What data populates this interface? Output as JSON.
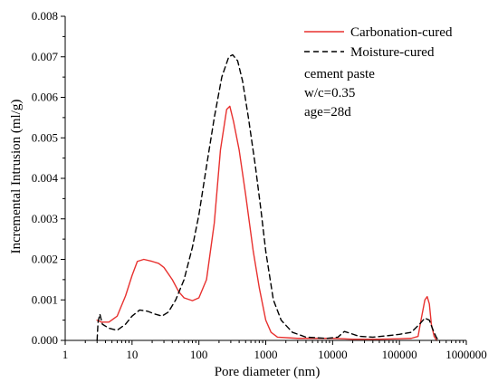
{
  "chart_data": {
    "type": "line",
    "xscale": "log",
    "xlabel": "Pore diameter (nm)",
    "ylabel": "Incremental Intrusion (ml/g)",
    "xlim": [
      1,
      1000000
    ],
    "ylim": [
      0,
      0.008
    ],
    "xticks": [
      1,
      10,
      100,
      1000,
      10000,
      100000,
      1000000
    ],
    "xtick_labels": [
      "1",
      "10",
      "100",
      "1000",
      "10000",
      "100000",
      "1000000"
    ],
    "yticks": [
      0,
      0.001,
      0.002,
      0.003,
      0.004,
      0.005,
      0.006,
      0.007,
      0.008
    ],
    "ytick_labels": [
      "0.000",
      "0.001",
      "0.002",
      "0.003",
      "0.004",
      "0.005",
      "0.006",
      "0.007",
      "0.008"
    ],
    "legend_position": "top-right",
    "annotations": [
      "cement paste",
      "w/c=0.35",
      "age=28d"
    ],
    "series": [
      {
        "name": "Carbonation-cured",
        "color": "#e8312f",
        "style": "solid",
        "points": [
          [
            3.0,
            0.0005
          ],
          [
            3.5,
            0.00045
          ],
          [
            4.5,
            0.00045
          ],
          [
            6,
            0.0006
          ],
          [
            8,
            0.0011
          ],
          [
            10,
            0.0016
          ],
          [
            12,
            0.00195
          ],
          [
            15,
            0.002
          ],
          [
            20,
            0.00195
          ],
          [
            25,
            0.0019
          ],
          [
            30,
            0.0018
          ],
          [
            40,
            0.0015
          ],
          [
            50,
            0.0012
          ],
          [
            60,
            0.00105
          ],
          [
            80,
            0.00098
          ],
          [
            100,
            0.00105
          ],
          [
            130,
            0.0015
          ],
          [
            170,
            0.0029
          ],
          [
            210,
            0.0047
          ],
          [
            260,
            0.0057
          ],
          [
            290,
            0.00578
          ],
          [
            330,
            0.0054
          ],
          [
            400,
            0.0047
          ],
          [
            500,
            0.0036
          ],
          [
            650,
            0.0022
          ],
          [
            800,
            0.0013
          ],
          [
            1000,
            0.0005
          ],
          [
            1200,
            0.0002
          ],
          [
            1500,
            8e-05
          ],
          [
            3000,
            5e-05
          ],
          [
            10000,
            5e-05
          ],
          [
            20000,
            3e-05
          ],
          [
            50000,
            3e-05
          ],
          [
            100000,
            4e-05
          ],
          [
            150000,
            5e-05
          ],
          [
            190000,
            0.0001
          ],
          [
            210000,
            0.0005
          ],
          [
            240000,
            0.001
          ],
          [
            260000,
            0.00108
          ],
          [
            280000,
            0.0009
          ],
          [
            300000,
            0.0004
          ],
          [
            330000,
            0.0001
          ],
          [
            360000,
            0.0
          ]
        ]
      },
      {
        "name": "Moisture-cured",
        "color": "#000000",
        "style": "dashed",
        "points": [
          [
            3.0,
            0.0
          ],
          [
            3.1,
            0.00045
          ],
          [
            3.3,
            0.00065
          ],
          [
            3.6,
            0.0004
          ],
          [
            4.5,
            0.0003
          ],
          [
            6,
            0.00025
          ],
          [
            8,
            0.0004
          ],
          [
            10,
            0.0006
          ],
          [
            13,
            0.00075
          ],
          [
            17,
            0.00072
          ],
          [
            22,
            0.00065
          ],
          [
            28,
            0.0006
          ],
          [
            35,
            0.0007
          ],
          [
            45,
            0.001
          ],
          [
            60,
            0.0015
          ],
          [
            80,
            0.0023
          ],
          [
            100,
            0.0031
          ],
          [
            130,
            0.0043
          ],
          [
            170,
            0.0055
          ],
          [
            220,
            0.0065
          ],
          [
            280,
            0.007
          ],
          [
            320,
            0.00705
          ],
          [
            380,
            0.0069
          ],
          [
            450,
            0.0064
          ],
          [
            550,
            0.0055
          ],
          [
            700,
            0.0043
          ],
          [
            850,
            0.0032
          ],
          [
            1000,
            0.0022
          ],
          [
            1300,
            0.001
          ],
          [
            1700,
            0.0005
          ],
          [
            2500,
            0.0002
          ],
          [
            4000,
            8e-05
          ],
          [
            8000,
            5e-05
          ],
          [
            12000,
            8e-05
          ],
          [
            15000,
            0.00022
          ],
          [
            18000,
            0.00018
          ],
          [
            25000,
            0.0001
          ],
          [
            40000,
            8e-05
          ],
          [
            70000,
            0.00012
          ],
          [
            100000,
            0.00015
          ],
          [
            150000,
            0.0002
          ],
          [
            200000,
            0.0004
          ],
          [
            240000,
            0.00055
          ],
          [
            280000,
            0.0005
          ],
          [
            310000,
            0.0003
          ],
          [
            350000,
            0.0001
          ],
          [
            380000,
            0.0
          ]
        ]
      }
    ]
  }
}
